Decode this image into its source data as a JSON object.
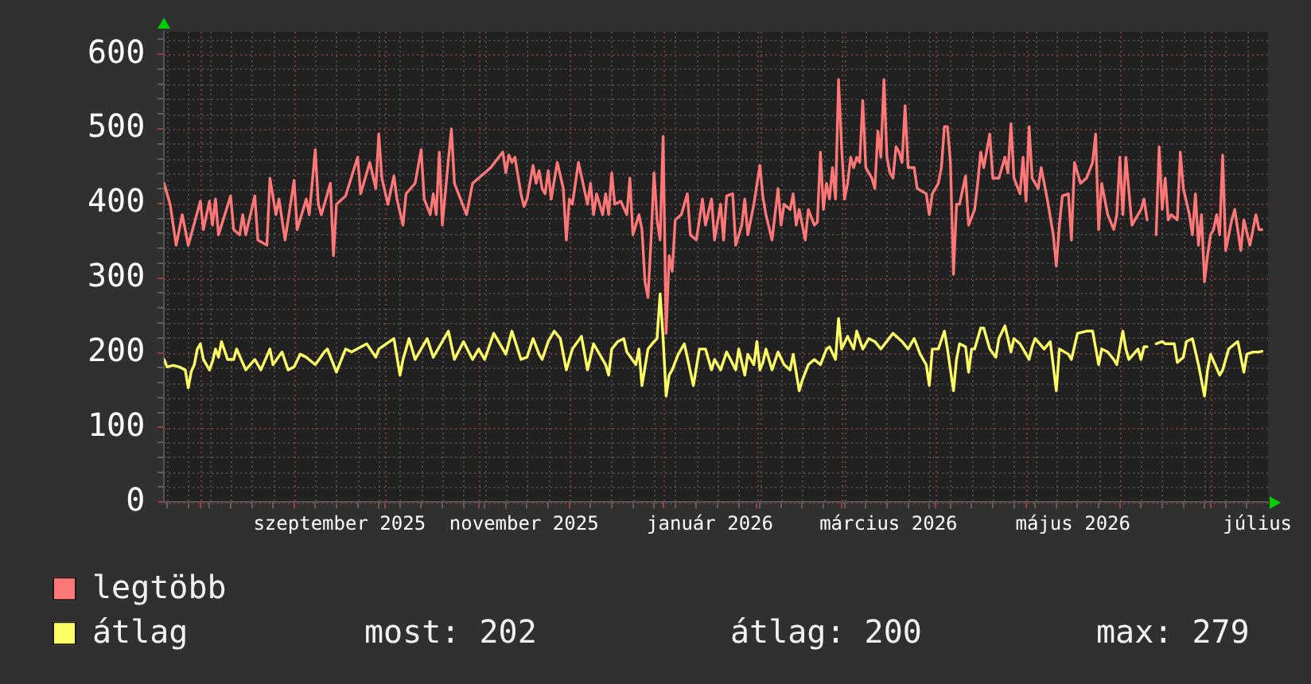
{
  "chart_data": {
    "type": "line",
    "xlim": [
      "2025-07-20",
      "2026-07-20"
    ],
    "xticks": [
      {
        "value": "2025-07-21",
        "label": null
      },
      {
        "value": "2025-07-28",
        "label": null
      },
      {
        "value": "2025-08-01",
        "label": null
      },
      {
        "value": "2025-08-04",
        "label": null
      },
      {
        "value": "2025-08-11",
        "label": null
      },
      {
        "value": "2025-08-18",
        "label": null
      },
      {
        "value": "2025-08-25",
        "label": null
      },
      {
        "value": "2025-09-01",
        "label": null
      },
      {
        "value": "2025-09-08",
        "label": null
      },
      {
        "value": "2025-09-15",
        "label": null
      },
      {
        "value": "2025-09-16",
        "label": "szeptember 2025"
      },
      {
        "value": "2025-09-22",
        "label": null
      },
      {
        "value": "2025-09-29",
        "label": null
      },
      {
        "value": "2025-10-01",
        "label": null
      },
      {
        "value": "2025-10-06",
        "label": null
      },
      {
        "value": "2025-10-13",
        "label": null
      },
      {
        "value": "2025-10-20",
        "label": null
      },
      {
        "value": "2025-10-27",
        "label": null
      },
      {
        "value": "2025-11-01",
        "label": null
      },
      {
        "value": "2025-11-03",
        "label": null
      },
      {
        "value": "2025-11-10",
        "label": null
      },
      {
        "value": "2025-11-16",
        "label": "november 2025"
      },
      {
        "value": "2025-11-17",
        "label": null
      },
      {
        "value": "2025-11-24",
        "label": null
      },
      {
        "value": "2025-12-01",
        "label": null
      },
      {
        "value": "2025-12-08",
        "label": null
      },
      {
        "value": "2025-12-15",
        "label": null
      },
      {
        "value": "2025-12-22",
        "label": null
      },
      {
        "value": "2025-12-29",
        "label": null
      },
      {
        "value": "2026-01-01",
        "label": null
      },
      {
        "value": "2026-01-05",
        "label": null
      },
      {
        "value": "2026-01-12",
        "label": null
      },
      {
        "value": "2026-01-16T12:00",
        "label": "január 2026"
      },
      {
        "value": "2026-01-19",
        "label": null
      },
      {
        "value": "2026-01-26",
        "label": null
      },
      {
        "value": "2026-02-01",
        "label": null
      },
      {
        "value": "2026-02-02",
        "label": null
      },
      {
        "value": "2026-02-09",
        "label": null
      },
      {
        "value": "2026-02-16",
        "label": null
      },
      {
        "value": "2026-02-23",
        "label": null
      },
      {
        "value": "2026-03-01",
        "label": null
      },
      {
        "value": "2026-03-02",
        "label": null
      },
      {
        "value": "2026-03-09",
        "label": null
      },
      {
        "value": "2026-03-16",
        "label": null
      },
      {
        "value": "2026-03-16T12:00",
        "label": "március 2026"
      },
      {
        "value": "2026-03-23",
        "label": null
      },
      {
        "value": "2026-03-30",
        "label": null
      },
      {
        "value": "2026-04-01",
        "label": null
      },
      {
        "value": "2026-04-06",
        "label": null
      },
      {
        "value": "2026-04-13",
        "label": null
      },
      {
        "value": "2026-04-20",
        "label": null
      },
      {
        "value": "2026-04-27",
        "label": null
      },
      {
        "value": "2026-05-01",
        "label": null
      },
      {
        "value": "2026-05-04",
        "label": null
      },
      {
        "value": "2026-05-11",
        "label": null
      },
      {
        "value": "2026-05-16T12:00",
        "label": "május 2026"
      },
      {
        "value": "2026-05-18",
        "label": null
      },
      {
        "value": "2026-05-25",
        "label": null
      },
      {
        "value": "2026-06-01",
        "label": null
      },
      {
        "value": "2026-06-08",
        "label": null
      },
      {
        "value": "2026-06-15",
        "label": null
      },
      {
        "value": "2026-06-22",
        "label": null
      },
      {
        "value": "2026-06-29",
        "label": null
      },
      {
        "value": "2026-07-01",
        "label": null
      },
      {
        "value": "2026-07-06",
        "label": null
      },
      {
        "value": "2026-07-13",
        "label": null
      },
      {
        "value": "2026-07-16T12:00",
        "label": "július"
      }
    ],
    "ylim": [
      0,
      630
    ],
    "yticks": [
      0,
      {
        "value": 20,
        "label": null
      },
      {
        "value": 40,
        "label": null
      },
      {
        "value": 60,
        "label": null
      },
      {
        "value": 80,
        "label": null
      },
      100,
      {
        "value": 120,
        "label": null
      },
      {
        "value": 140,
        "label": null
      },
      {
        "value": 160,
        "label": null
      },
      {
        "value": 180,
        "label": null
      },
      200,
      {
        "value": 220,
        "label": null
      },
      {
        "value": 240,
        "label": null
      },
      {
        "value": 260,
        "label": null
      },
      {
        "value": 280,
        "label": null
      },
      300,
      {
        "value": 320,
        "label": null
      },
      {
        "value": 340,
        "label": null
      },
      {
        "value": 360,
        "label": null
      },
      {
        "value": 380,
        "label": null
      },
      400,
      {
        "value": 420,
        "label": null
      },
      {
        "value": 440,
        "label": null
      },
      {
        "value": 460,
        "label": null
      },
      {
        "value": 480,
        "label": null
      },
      500,
      {
        "value": 520,
        "label": null
      },
      {
        "value": 540,
        "label": null
      },
      {
        "value": 560,
        "label": null
      },
      {
        "value": 580,
        "label": null
      },
      600,
      {
        "value": 620,
        "label": null
      }
    ],
    "grid": true,
    "legend": "bottom left",
    "annotations": [
      "most: 202",
      "átlag: 200",
      "max: 279"
    ],
    "series": [
      {
        "name": "legtöbb",
        "color": "#ff7777",
        "x": [
          "2025-07-20",
          "2025-07-22",
          "2025-07-24",
          "2025-07-26",
          "2025-07-28",
          "2025-08-01",
          "2025-08-02",
          "2025-08-04",
          "2025-08-05",
          "2025-08-06",
          "2025-08-07",
          "2025-08-11",
          "2025-08-12",
          "2025-08-14",
          "2025-08-15",
          "2025-08-16",
          "2025-08-19",
          "2025-08-20",
          "2025-08-23",
          "2025-08-24",
          "2025-08-26",
          "2025-08-27",
          "2025-08-29",
          "2025-09-01",
          "2025-09-02",
          "2025-09-05",
          "2025-09-06",
          "2025-09-08",
          "2025-09-09",
          "2025-09-10",
          "2025-09-13",
          "2025-09-14",
          "2025-09-15",
          "2025-09-18",
          "2025-09-22",
          "2025-09-23",
          "2025-09-26",
          "2025-09-28",
          "2025-09-29",
          "2025-09-30",
          "2025-10-02",
          "2025-10-04",
          "2025-10-05",
          "2025-10-07",
          "2025-10-08",
          "2025-10-11",
          "2025-10-13",
          "2025-10-14",
          "2025-10-16",
          "2025-10-17",
          "2025-10-18",
          "2025-10-19",
          "2025-10-20",
          "2025-10-22",
          "2025-10-23",
          "2025-10-24",
          "2025-10-26",
          "2025-10-28",
          "2025-10-30",
          "2025-11-01",
          "2025-11-03",
          "2025-11-05",
          "2025-11-09",
          "2025-11-10",
          "2025-11-11",
          "2025-11-12",
          "2025-11-13",
          "2025-11-15",
          "2025-11-16",
          "2025-11-17",
          "2025-11-19",
          "2025-11-20",
          "2025-11-21",
          "2025-11-22",
          "2025-11-23",
          "2025-11-24",
          "2025-11-25",
          "2025-11-27",
          "2025-11-29",
          "2025-11-30",
          "2025-12-01",
          "2025-12-02",
          "2025-12-04",
          "2025-12-07",
          "2025-12-08",
          "2025-12-09",
          "2025-12-10",
          "2025-12-12",
          "2025-12-13",
          "2025-12-14",
          "2025-12-15",
          "2025-12-16",
          "2025-12-18",
          "2025-12-20",
          "2025-12-21",
          "2025-12-22",
          "2025-12-24",
          "2025-12-25",
          "2025-12-26",
          "2025-12-27",
          "2025-12-28",
          "2025-12-29",
          "2025-12-30",
          "2025-12-31",
          "2026-01-01",
          "2026-01-02",
          "2026-01-03",
          "2026-01-04",
          "2026-01-05",
          "2026-01-07",
          "2026-01-09",
          "2026-01-10",
          "2026-01-12",
          "2026-01-14",
          "2026-01-15",
          "2026-01-17",
          "2026-01-18",
          "2026-01-20",
          "2026-01-21",
          "2026-01-22",
          "2026-01-24",
          "2026-01-25",
          "2026-01-27",
          "2026-01-28",
          "2026-01-29",
          "2026-01-31",
          "2026-02-02",
          "2026-02-03",
          "2026-02-04",
          "2026-02-06",
          "2026-02-08",
          "2026-02-09",
          "2026-02-10",
          "2026-02-12",
          "2026-02-13",
          "2026-02-14",
          "2026-02-15",
          "2026-02-17",
          "2026-02-18",
          "2026-02-20",
          "2026-02-21",
          "2026-02-22",
          "2026-02-23",
          "2026-02-24",
          "2026-02-25",
          "2026-02-26",
          "2026-02-27",
          "2026-02-28",
          "2026-03-01",
          "2026-03-02",
          "2026-03-03",
          "2026-03-04",
          "2026-03-05",
          "2026-03-06",
          "2026-03-07",
          "2026-03-08",
          "2026-03-09",
          "2026-03-11",
          "2026-03-12",
          "2026-03-13",
          "2026-03-14",
          "2026-03-15",
          "2026-03-16",
          "2026-03-17",
          "2026-03-18",
          "2026-03-19",
          "2026-03-20",
          "2026-03-21",
          "2026-03-22",
          "2026-03-23",
          "2026-03-25",
          "2026-03-26",
          "2026-03-29",
          "2026-03-30",
          "2026-03-31",
          "2026-04-02",
          "2026-04-03",
          "2026-04-04",
          "2026-04-05",
          "2026-04-06",
          "2026-04-07",
          "2026-04-08",
          "2026-04-09",
          "2026-04-11",
          "2026-04-12",
          "2026-04-14",
          "2026-04-15",
          "2026-04-16",
          "2026-04-17",
          "2026-04-19",
          "2026-04-20",
          "2026-04-22",
          "2026-04-24",
          "2026-04-25",
          "2026-04-26",
          "2026-04-27",
          "2026-04-29",
          "2026-04-30",
          "2026-05-01",
          "2026-05-02",
          "2026-05-03",
          "2026-05-05",
          "2026-05-06",
          "2026-05-07",
          "2026-05-08",
          "2026-05-10",
          "2026-05-11",
          "2026-05-12",
          "2026-05-13",
          "2026-05-15",
          "2026-05-16",
          "2026-05-17",
          "2026-05-19",
          "2026-05-21",
          "2026-05-23",
          "2026-05-24",
          "2026-05-25",
          "2026-05-26",
          "2026-05-28",
          "2026-05-30",
          "2026-05-31",
          "2026-06-01",
          "2026-06-02",
          "2026-06-03",
          "2026-06-05",
          "2026-06-07",
          "2026-06-08",
          "2026-06-09",
          "2026-06-10",
          "2026-06-11",
          "2026-06-13",
          "2026-06-14",
          "2026-06-15",
          "2026-06-16",
          "2026-06-17",
          "2026-06-18",
          "2026-06-20",
          "2026-06-21",
          "2026-06-22",
          "2026-06-24",
          "2026-06-25",
          "2026-06-26",
          "2026-06-27",
          "2026-06-28",
          "2026-06-29",
          "2026-06-30",
          "2026-07-01",
          "2026-07-02",
          "2026-07-03",
          "2026-07-04",
          "2026-07-05",
          "2026-07-06",
          "2026-07-08",
          "2026-07-09",
          "2026-07-11",
          "2026-07-12",
          "2026-07-14",
          "2026-07-16",
          "2026-07-17",
          "2026-07-18"
        ],
        "values": [
          427,
          399,
          344,
          385,
          344,
          403,
          365,
          403,
          371,
          406,
          358,
          410,
          365,
          358,
          385,
          358,
          410,
          351,
          344,
          434,
          385,
          406,
          351,
          431,
          365,
          406,
          385,
          472,
          399,
          385,
          427,
          330,
          399,
          410,
          462,
          413,
          455,
          420,
          493,
          434,
          399,
          437,
          406,
          371,
          413,
          427,
          472,
          406,
          385,
          413,
          385,
          469,
          371,
          458,
          500,
          427,
          406,
          385,
          427,
          434,
          441,
          448,
          469,
          441,
          465,
          455,
          462,
          413,
          396,
          406,
          451,
          427,
          444,
          420,
          413,
          444,
          406,
          455,
          420,
          351,
          406,
          399,
          455,
          399,
          427,
          385,
          413,
          385,
          413,
          385,
          441,
          399,
          403,
          385,
          434,
          358,
          385,
          365,
          295,
          274,
          351,
          441,
          378,
          351,
          490,
          226,
          330,
          309,
          378,
          385,
          413,
          358,
          351,
          406,
          371,
          406,
          351,
          399,
          351,
          410,
          413,
          344,
          371,
          406,
          358,
          399,
          451,
          408,
          385,
          351,
          420,
          371,
          399,
          392,
          413,
          371,
          392,
          351,
          392,
          371,
          375,
          469,
          392,
          427,
          406,
          448,
          406,
          566,
          476,
          406,
          427,
          462,
          448,
          462,
          455,
          538,
          448,
          434,
          420,
          497,
          462,
          566,
          462,
          441,
          434,
          476,
          469,
          455,
          531,
          448,
          448,
          420,
          413,
          385,
          413,
          427,
          448,
          503,
          503,
          455,
          305,
          399,
          399,
          437,
          371,
          392,
          427,
          469,
          448,
          493,
          434,
          434,
          462,
          441,
          507,
          434,
          413,
          462,
          403,
          503,
          434,
          420,
          448,
          427,
          406,
          358,
          316,
          371,
          410,
          413,
          351,
          455,
          427,
          434,
          455,
          493,
          365,
          427,
          385,
          365,
          385,
          462,
          385,
          462,
          371,
          385,
          392,
          406,
          378,
          null,
          358,
          476,
          392,
          434,
          378,
          385,
          378,
          469,
          420,
          385,
          358,
          413,
          344,
          385,
          295,
          330,
          358,
          365,
          385,
          358,
          465,
          337,
          378,
          392,
          337,
          378,
          344,
          385,
          365,
          365
        ]
      },
      {
        "name": "átlag",
        "color": "#ffff66",
        "x": [
          "2025-07-20",
          "2025-07-21",
          "2025-07-23",
          "2025-07-25",
          "2025-07-27",
          "2025-07-28",
          "2025-07-29",
          "2025-07-30",
          "2025-07-31",
          "2025-08-01",
          "2025-08-02",
          "2025-08-04",
          "2025-08-05",
          "2025-08-06",
          "2025-08-07",
          "2025-08-08",
          "2025-08-10",
          "2025-08-12",
          "2025-08-13",
          "2025-08-16",
          "2025-08-19",
          "2025-08-21",
          "2025-08-24",
          "2025-08-25",
          "2025-08-28",
          "2025-08-30",
          "2025-09-01",
          "2025-09-03",
          "2025-09-05",
          "2025-09-08",
          "2025-09-11",
          "2025-09-12",
          "2025-09-15",
          "2025-09-18",
          "2025-09-20",
          "2025-09-25",
          "2025-09-28",
          "2025-09-29",
          "2025-10-04",
          "2025-10-06",
          "2025-10-07",
          "2025-10-09",
          "2025-10-11",
          "2025-10-15",
          "2025-10-17",
          "2025-10-20",
          "2025-10-22",
          "2025-10-24",
          "2025-10-27",
          "2025-10-30",
          "2025-11-01",
          "2025-11-03",
          "2025-11-06",
          "2025-11-10",
          "2025-11-12",
          "2025-11-15",
          "2025-11-17",
          "2025-11-19",
          "2025-11-21",
          "2025-11-22",
          "2025-11-24",
          "2025-11-26",
          "2025-11-28",
          "2025-11-30",
          "2025-12-02",
          "2025-12-05",
          "2025-12-07",
          "2025-12-09",
          "2025-12-13",
          "2025-12-14",
          "2025-12-15",
          "2025-12-17",
          "2025-12-19",
          "2025-12-20",
          "2025-12-23",
          "2025-12-24",
          "2025-12-25",
          "2025-12-27",
          "2025-12-29",
          "2025-12-30",
          "2025-12-31",
          "2026-01-01",
          "2026-01-02",
          "2026-01-03",
          "2026-01-04",
          "2026-01-06",
          "2026-01-08",
          "2026-01-09",
          "2026-01-11",
          "2026-01-13",
          "2026-01-15",
          "2026-01-17",
          "2026-01-18",
          "2026-01-20",
          "2026-01-22",
          "2026-01-25",
          "2026-01-26",
          "2026-01-28",
          "2026-01-29",
          "2026-01-31",
          "2026-02-01",
          "2026-02-02",
          "2026-02-03",
          "2026-02-04",
          "2026-02-06",
          "2026-02-08",
          "2026-02-10",
          "2026-02-12",
          "2026-02-13",
          "2026-02-15",
          "2026-02-16",
          "2026-02-18",
          "2026-02-20",
          "2026-02-22",
          "2026-02-24",
          "2026-02-25",
          "2026-02-27",
          "2026-02-28",
          "2026-03-01",
          "2026-03-03",
          "2026-03-05",
          "2026-03-06",
          "2026-03-08",
          "2026-03-10",
          "2026-03-12",
          "2026-03-14",
          "2026-03-18",
          "2026-03-21",
          "2026-03-23",
          "2026-03-25",
          "2026-03-27",
          "2026-03-29",
          "2026-03-30",
          "2026-03-31",
          "2026-04-02",
          "2026-04-04",
          "2026-04-05",
          "2026-04-07",
          "2026-04-08",
          "2026-04-09",
          "2026-04-11",
          "2026-04-12",
          "2026-04-13",
          "2026-04-14",
          "2026-04-16",
          "2026-04-17",
          "2026-04-19",
          "2026-04-21",
          "2026-04-22",
          "2026-04-24",
          "2026-04-25",
          "2026-04-26",
          "2026-04-27",
          "2026-04-29",
          "2026-05-02",
          "2026-05-03",
          "2026-05-04",
          "2026-05-07",
          "2026-05-09",
          "2026-05-11",
          "2026-05-12",
          "2026-05-15",
          "2026-05-16",
          "2026-05-18",
          "2026-05-21",
          "2026-05-23",
          "2026-05-25",
          "2026-05-26",
          "2026-05-28",
          "2026-05-30",
          "2026-05-31",
          "2026-06-02",
          "2026-06-03",
          "2026-06-04",
          "2026-06-07",
          "2026-06-08",
          "2026-06-09",
          "2026-06-10",
          "2026-06-11",
          "2026-06-13",
          "2026-06-15",
          "2026-06-16",
          "2026-06-19",
          "2026-06-20",
          "2026-06-22",
          "2026-06-23",
          "2026-06-25",
          "2026-06-27",
          "2026-06-29",
          "2026-06-30",
          "2026-07-01",
          "2026-07-04",
          "2026-07-05",
          "2026-07-07",
          "2026-07-09",
          "2026-07-10",
          "2026-07-12",
          "2026-07-13",
          "2026-07-15",
          "2026-07-17",
          "2026-07-18"
        ],
        "values": [
          191,
          181,
          183,
          181,
          177,
          153,
          175,
          184,
          205,
          212,
          191,
          177,
          188,
          205,
          194,
          215,
          191,
          191,
          205,
          177,
          191,
          177,
          205,
          184,
          201,
          177,
          181,
          198,
          194,
          184,
          201,
          205,
          174,
          205,
          201,
          212,
          194,
          205,
          219,
          170,
          191,
          219,
          191,
          219,
          194,
          215,
          229,
          191,
          215,
          191,
          205,
          191,
          226,
          198,
          229,
          191,
          194,
          219,
          198,
          191,
          215,
          229,
          219,
          177,
          205,
          222,
          177,
          212,
          184,
          170,
          205,
          215,
          219,
          201,
          184,
          205,
          156,
          205,
          215,
          219,
          279,
          219,
          142,
          170,
          177,
          198,
          212,
          194,
          156,
          205,
          205,
          177,
          191,
          177,
          201,
          177,
          205,
          170,
          198,
          184,
          215,
          177,
          187,
          205,
          177,
          201,
          184,
          177,
          198,
          149,
          163,
          184,
          191,
          184,
          205,
          208,
          191,
          246,
          205,
          222,
          205,
          229,
          205,
          219,
          215,
          205,
          226,
          215,
          205,
          219,
          198,
          184,
          156,
          205,
          205,
          229,
          205,
          149,
          191,
          212,
          208,
          174,
          205,
          205,
          233,
          233,
          205,
          194,
          219,
          236,
          219,
          201,
          219,
          212,
          191,
          208,
          219,
          205,
          215,
          149,
          205,
          198,
          191,
          226,
          229,
          229,
          184,
          205,
          201,
          191,
          184,
          229,
          205,
          191,
          205,
          191,
          208,
          208,
          null,
          212,
          215,
          212,
          212,
          187,
          194,
          215,
          219,
          184,
          142,
          177,
          198,
          170,
          177,
          205,
          212,
          215,
          174,
          198,
          201,
          201,
          202
        ]
      }
    ]
  }
}
